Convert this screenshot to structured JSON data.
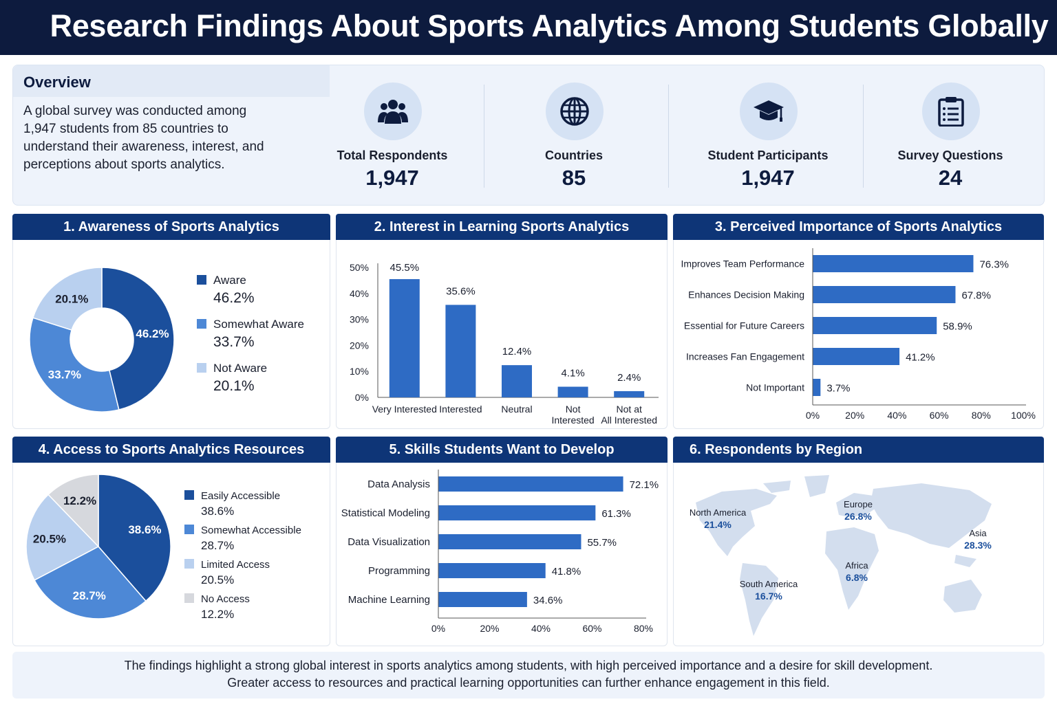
{
  "title": "Research Findings About Sports Analytics Among Students Globally",
  "overview": {
    "heading": "Overview",
    "text": "A global survey was conducted among 1,947 students from 85 countries to understand their awareness, interest, and perceptions about sports analytics.",
    "stats": [
      {
        "label": "Total Respondents",
        "value": "1,947",
        "icon": "people-icon"
      },
      {
        "label": "Countries",
        "value": "85",
        "icon": "globe-icon"
      },
      {
        "label": "Student Participants",
        "value": "1,947",
        "icon": "graduation-cap-icon"
      },
      {
        "label": "Survey Questions",
        "value": "24",
        "icon": "clipboard-icon"
      }
    ]
  },
  "colors": {
    "dark": "#1b4f9c",
    "mid": "#4d88d6",
    "light": "#b9d0ef",
    "grey": "#d6d8dd",
    "bar": "#2e6bc4",
    "header": "#0e3577"
  },
  "chart_data": [
    {
      "type": "pie",
      "title": "1. Awareness of Sports Analytics",
      "donut": true,
      "categories": [
        "Aware",
        "Somewhat Aware",
        "Not Aware"
      ],
      "values": [
        46.2,
        33.7,
        20.1
      ],
      "labels": [
        "46.2%",
        "33.7%",
        "20.1%"
      ],
      "legend_position": "right"
    },
    {
      "type": "bar",
      "title": "2. Interest in Learning Sports Analytics",
      "categories": [
        "Very Interested",
        "Interested",
        "Neutral",
        "Not Interested",
        "Not at All Interested"
      ],
      "values": [
        45.5,
        35.6,
        12.4,
        4.1,
        2.4
      ],
      "labels": [
        "45.5%",
        "35.6%",
        "12.4%",
        "4.1%",
        "2.4%"
      ],
      "yticks": [
        "0%",
        "10%",
        "20%",
        "30%",
        "40%",
        "50%"
      ],
      "ylim": [
        0,
        50
      ],
      "grid": false
    },
    {
      "type": "bar",
      "orientation": "horizontal",
      "title": "3. Perceived Importance of Sports Analytics",
      "categories": [
        "Improves Team Performance",
        "Enhances Decision Making",
        "Essential for Future Careers",
        "Increases Fan Engagement",
        "Not Important"
      ],
      "values": [
        76.3,
        67.8,
        58.9,
        41.2,
        3.7
      ],
      "labels": [
        "76.3%",
        "67.8%",
        "58.9%",
        "41.2%",
        "3.7%"
      ],
      "xticks": [
        "0%",
        "20%",
        "40%",
        "60%",
        "80%",
        "100%"
      ],
      "xlim": [
        0,
        100
      ],
      "grid": false
    },
    {
      "type": "pie",
      "title": "4. Access to Sports Analytics Resources",
      "categories": [
        "Easily Accessible",
        "Somewhat Accessible",
        "Limited Access",
        "No Access"
      ],
      "values": [
        38.6,
        28.7,
        20.5,
        12.2
      ],
      "labels": [
        "38.6%",
        "28.7%",
        "20.5%",
        "12.2%"
      ],
      "legend_position": "right"
    },
    {
      "type": "bar",
      "orientation": "horizontal",
      "title": "5. Skills Students Want to Develop",
      "categories": [
        "Data Analysis",
        "Statistical Modeling",
        "Data Visualization",
        "Programming",
        "Machine Learning"
      ],
      "values": [
        72.1,
        61.3,
        55.7,
        41.8,
        34.6
      ],
      "labels": [
        "72.1%",
        "61.3%",
        "55.7%",
        "41.8%",
        "34.6%"
      ],
      "xticks": [
        "0%",
        "20%",
        "40%",
        "60%",
        "80%"
      ],
      "xlim": [
        0,
        80
      ],
      "grid": false
    },
    {
      "type": "map",
      "title": "6. Respondents by Region",
      "regions": [
        {
          "name": "North America",
          "value": "21.4%"
        },
        {
          "name": "Europe",
          "value": "26.8%"
        },
        {
          "name": "Asia",
          "value": "28.3%"
        },
        {
          "name": "Africa",
          "value": "6.8%"
        },
        {
          "name": "South America",
          "value": "16.7%"
        }
      ]
    }
  ],
  "footer": {
    "line1": "The findings highlight a strong global interest in sports analytics among students, with high perceived importance and a desire for skill development.",
    "line2": "Greater access to resources and practical learning opportunities can further enhance engagement in this field."
  }
}
